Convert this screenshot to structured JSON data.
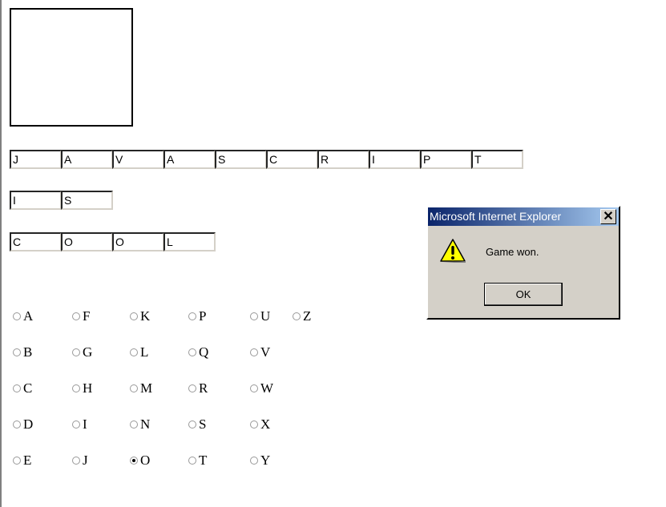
{
  "word_rows": [
    [
      "J",
      "A",
      "V",
      "A",
      "S",
      "C",
      "R",
      "I",
      "P",
      "T"
    ],
    [
      "I",
      "S"
    ],
    [
      "C",
      "O",
      "O",
      "L"
    ]
  ],
  "letters": [
    {
      "label": "A",
      "col": 0,
      "row": 0
    },
    {
      "label": "B",
      "col": 0,
      "row": 1
    },
    {
      "label": "C",
      "col": 0,
      "row": 2
    },
    {
      "label": "D",
      "col": 0,
      "row": 3
    },
    {
      "label": "E",
      "col": 0,
      "row": 4
    },
    {
      "label": "F",
      "col": 1,
      "row": 0
    },
    {
      "label": "G",
      "col": 1,
      "row": 1
    },
    {
      "label": "H",
      "col": 1,
      "row": 2
    },
    {
      "label": "I",
      "col": 1,
      "row": 3
    },
    {
      "label": "J",
      "col": 1,
      "row": 4
    },
    {
      "label": "K",
      "col": 2,
      "row": 0
    },
    {
      "label": "L",
      "col": 2,
      "row": 1
    },
    {
      "label": "M",
      "col": 2,
      "row": 2
    },
    {
      "label": "N",
      "col": 2,
      "row": 3
    },
    {
      "label": "O",
      "col": 2,
      "row": 4
    },
    {
      "label": "P",
      "col": 3,
      "row": 0
    },
    {
      "label": "Q",
      "col": 3,
      "row": 1
    },
    {
      "label": "R",
      "col": 3,
      "row": 2
    },
    {
      "label": "S",
      "col": 3,
      "row": 3
    },
    {
      "label": "T",
      "col": 3,
      "row": 4
    },
    {
      "label": "U",
      "col": 4,
      "row": 0
    },
    {
      "label": "V",
      "col": 4,
      "row": 1
    },
    {
      "label": "W",
      "col": 4,
      "row": 2
    },
    {
      "label": "X",
      "col": 4,
      "row": 3
    },
    {
      "label": "Y",
      "col": 4,
      "row": 4
    },
    {
      "label": "Z",
      "col": 5,
      "row": 0
    }
  ],
  "selected_letter": "O",
  "dialog": {
    "title": "Microsoft Internet Explorer",
    "close_label": "✕",
    "icon": "warning-icon",
    "message": "Game won.",
    "ok_label": "OK"
  }
}
